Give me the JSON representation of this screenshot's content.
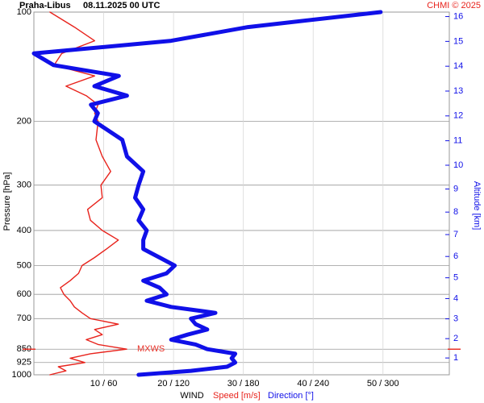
{
  "chart_data": {
    "type": "wind-profile",
    "title": "Praha-Libus",
    "subtitle": "08.11.2025 00 UTC",
    "credit": "CHMI © 2025",
    "y_label": "Pressure [hPa]",
    "y2_label": "Altitude [km]",
    "x_label": "WIND",
    "speed_label": "Speed [m/s]",
    "direction_label": "Direction [°]",
    "log_y": true,
    "grid": true,
    "ylim": [
      1000,
      100
    ],
    "yticks": [
      100,
      200,
      300,
      400,
      500,
      600,
      700,
      850,
      925,
      1000
    ],
    "y2ticks": [
      1,
      2,
      3,
      4,
      5,
      6,
      7,
      8,
      9,
      10,
      11,
      12,
      13,
      14,
      15,
      16
    ],
    "xlim": [
      0,
      59.5
    ],
    "x2lim": [
      0,
      357
    ],
    "xticks": [
      {
        "value": 10,
        "label": "10 / 60"
      },
      {
        "value": 20,
        "label": "20 / 120"
      },
      {
        "value": 30,
        "label": "30 / 180"
      },
      {
        "value": 40,
        "label": "40 / 240"
      },
      {
        "value": 50,
        "label": "50 / 300"
      }
    ],
    "mxws": {
      "label": "MXWS",
      "pressure": 850,
      "color": "#e8332a"
    },
    "pressure": [
      1000,
      975,
      950,
      925,
      900,
      875,
      850,
      825,
      800,
      775,
      750,
      725,
      700,
      675,
      650,
      625,
      600,
      575,
      550,
      525,
      500,
      475,
      450,
      425,
      400,
      375,
      350,
      325,
      300,
      275,
      250,
      225,
      200,
      190,
      180,
      170,
      160,
      150,
      140,
      130,
      120,
      110,
      100
    ],
    "series": [
      {
        "name": "Speed [m/s]",
        "color": "#e8231c",
        "axis": "x",
        "values": [
          2.3,
          4.6,
          3.5,
          7.3,
          5.2,
          8.1,
          13.3,
          9.2,
          7.5,
          9.8,
          8.7,
          12.1,
          8.1,
          6.9,
          5.8,
          5.2,
          4.3,
          3.8,
          5.2,
          6.4,
          6.9,
          8.7,
          10.4,
          12.1,
          9.8,
          8.1,
          7.7,
          9.8,
          9.6,
          11.0,
          9.8,
          8.9,
          9.2,
          8.7,
          9.2,
          7.5,
          4.6,
          8.7,
          2.9,
          4.0,
          8.7,
          5.8,
          2.3
        ]
      },
      {
        "name": "Direction [°]",
        "color": "#1010e8",
        "axis": "x2",
        "values": [
          90,
          135,
          166,
          173,
          170,
          173,
          149,
          139,
          118,
          132,
          149,
          139,
          135,
          156,
          118,
          97,
          114,
          108,
          94,
          114,
          121,
          108,
          94,
          94,
          97,
          90,
          94,
          87,
          90,
          94,
          80,
          76,
          52,
          55,
          49,
          80,
          52,
          73,
          17,
          0,
          118,
          184,
          298
        ]
      }
    ]
  }
}
